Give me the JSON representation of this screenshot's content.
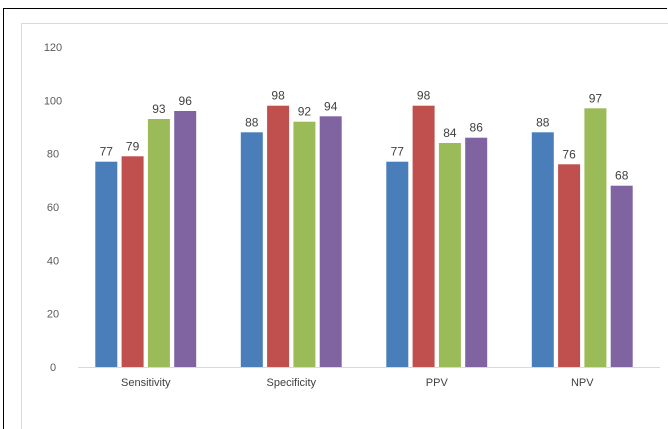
{
  "chart_data": {
    "type": "bar",
    "categories": [
      "Sensitivity",
      "Specificity",
      "PPV",
      "NPV"
    ],
    "series": [
      {
        "values": [
          77,
          88,
          77,
          88
        ],
        "color": "#4a7ebb"
      },
      {
        "values": [
          79,
          98,
          98,
          76
        ],
        "color": "#c0504d"
      },
      {
        "values": [
          93,
          92,
          84,
          97
        ],
        "color": "#9bbb59"
      },
      {
        "values": [
          96,
          94,
          86,
          68
        ],
        "color": "#8064a2"
      }
    ],
    "ylim": [
      0,
      120
    ],
    "yticks": [
      0,
      20,
      40,
      60,
      80,
      100,
      120
    ],
    "grid": false,
    "legend": "none",
    "data_labels": true,
    "title": "",
    "xlabel": "",
    "ylabel": ""
  }
}
